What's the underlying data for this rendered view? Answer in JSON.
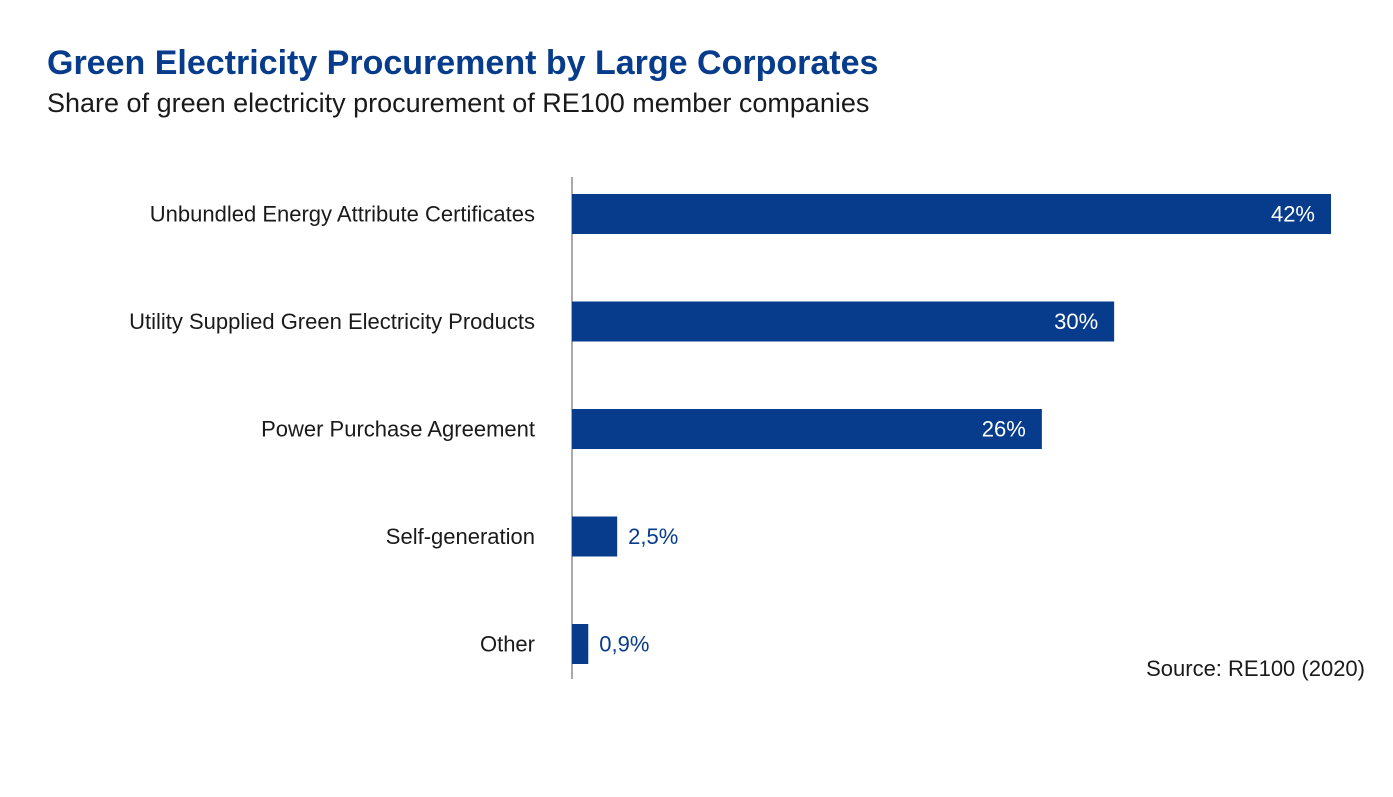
{
  "header": {
    "title": "Green Electricity Procurement by Large Corporates",
    "subtitle": "Share of green electricity procurement of RE100 member companies"
  },
  "footer": {
    "source": "Source: RE100 (2020)"
  },
  "colors": {
    "bar": "#073c8c",
    "title": "#073c8c",
    "text": "#1a1a1a",
    "axis": "#555555"
  },
  "chart_data": {
    "type": "bar",
    "orientation": "horizontal",
    "title": "Green Electricity Procurement by Large Corporates",
    "subtitle": "Share of green electricity procurement of RE100 member companies",
    "xlabel": "",
    "ylabel": "",
    "categories": [
      "Unbundled Energy Attribute Certificates",
      "Utility Supplied Green Electricity Products",
      "Power Purchase Agreement",
      "Self-generation",
      "Other"
    ],
    "values": [
      42,
      30,
      26,
      2.5,
      0.9
    ],
    "value_labels": [
      "42%",
      "30%",
      "26%",
      "2,5%",
      "0,9%"
    ],
    "xlim": [
      0,
      42
    ],
    "unit": "%",
    "grid": false,
    "legend": "none"
  }
}
